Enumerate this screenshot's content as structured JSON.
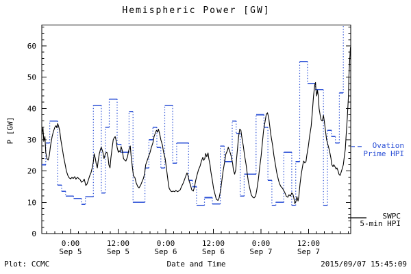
{
  "title": "Hemispheric Power [GW]",
  "footer": {
    "left": "Plot: CCMC",
    "right": "2015/09/07 15:45:09"
  },
  "colors": {
    "ovation_blue": "#2a4fd6",
    "swpc_black": "#000000",
    "background": "#ffffff"
  },
  "legend": {
    "ovation_line1": "Ovation",
    "ovation_line2": "Prime HPI",
    "swpc_line1": "SWPC",
    "swpc_line2": "5-min HPI"
  },
  "chart_data": {
    "type": "line",
    "title": "Hemispheric Power [GW]",
    "xlabel": "Date and Time",
    "ylabel": "P [GW]",
    "ylim": [
      0,
      66.8
    ],
    "y_ticks": [
      0,
      10,
      20,
      30,
      40,
      50,
      60
    ],
    "y_minor_step": 2,
    "x_hours_span": 77.87,
    "x_minor_step_hours": 2,
    "x_first_minor_hour": 1.25,
    "grid": false,
    "legend_position": "right-outside",
    "x_ticks": [
      {
        "t": 7.25,
        "time": "0:00",
        "date": "Sep 5"
      },
      {
        "t": 19.25,
        "time": "12:00",
        "date": "Sep 5"
      },
      {
        "t": 31.25,
        "time": "0:00",
        "date": "Sep 6"
      },
      {
        "t": 43.25,
        "time": "12:00",
        "date": "Sep 6"
      },
      {
        "t": 55.25,
        "time": "0:00",
        "date": "Sep 7"
      },
      {
        "t": 67.25,
        "time": "12:00",
        "date": "Sep 7"
      }
    ],
    "series": [
      {
        "name": "Ovation Prime HPI",
        "style": "hourly-steps-dotted-connectors",
        "color_key": "ovation_blue",
        "clip_top": true,
        "hourly_values": [
          22,
          29,
          36,
          36,
          15.5,
          13.5,
          12,
          12,
          11.2,
          11.2,
          9.4,
          11.8,
          11.8,
          41,
          41,
          13,
          34,
          43,
          43,
          28.5,
          26,
          26,
          39,
          10,
          10,
          10,
          21,
          30,
          34,
          27.5,
          21,
          41,
          41,
          22.5,
          29,
          29,
          29,
          17,
          15,
          9,
          9,
          11.5,
          11.5,
          9.5,
          9.5,
          28,
          23,
          23,
          36,
          32,
          12,
          19,
          19,
          19,
          38,
          38,
          34,
          17,
          9,
          10,
          10,
          26,
          26,
          9,
          23,
          55,
          55,
          48,
          48,
          46,
          46,
          9,
          33,
          31,
          29,
          45,
          67,
          67
        ]
      },
      {
        "name": "SWPC 5-min HPI",
        "style": "solid-line",
        "color_key": "swpc_black",
        "points": [
          [
            0,
            31.5
          ],
          [
            0.3,
            34
          ],
          [
            0.5,
            29.5
          ],
          [
            0.8,
            31
          ],
          [
            1.0,
            26
          ],
          [
            1.3,
            24
          ],
          [
            1.6,
            23.5
          ],
          [
            1.9,
            25
          ],
          [
            2.2,
            28
          ],
          [
            2.6,
            31
          ],
          [
            2.9,
            32.5
          ],
          [
            3.3,
            34
          ],
          [
            3.6,
            34.5
          ],
          [
            3.8,
            33.8
          ],
          [
            4.0,
            35.2
          ],
          [
            4.2,
            34.5
          ],
          [
            4.5,
            33
          ],
          [
            4.8,
            30
          ],
          [
            5.2,
            27
          ],
          [
            5.5,
            24.5
          ],
          [
            5.9,
            22
          ],
          [
            6.2,
            20
          ],
          [
            6.6,
            18.5
          ],
          [
            6.9,
            17.8
          ],
          [
            7.3,
            17.5
          ],
          [
            7.6,
            18
          ],
          [
            7.9,
            17.6
          ],
          [
            8.3,
            18.2
          ],
          [
            8.6,
            17.4
          ],
          [
            9.0,
            18
          ],
          [
            9.3,
            17.6
          ],
          [
            9.7,
            17.2
          ],
          [
            10.0,
            16.4
          ],
          [
            10.4,
            16.8
          ],
          [
            10.7,
            17.4
          ],
          [
            11.1,
            15.4
          ],
          [
            11.4,
            15.8
          ],
          [
            11.7,
            17
          ],
          [
            12.1,
            18.6
          ],
          [
            12.4,
            19.4
          ],
          [
            12.7,
            21
          ],
          [
            13.0,
            23
          ],
          [
            13.2,
            25.5
          ],
          [
            13.5,
            24
          ],
          [
            13.7,
            22.5
          ],
          [
            14.0,
            21
          ],
          [
            14.2,
            23
          ],
          [
            14.5,
            25.5
          ],
          [
            14.8,
            27
          ],
          [
            15.0,
            27.6
          ],
          [
            15.4,
            26
          ],
          [
            15.7,
            24
          ],
          [
            16.1,
            25.8
          ],
          [
            16.4,
            26
          ],
          [
            16.7,
            24.5
          ],
          [
            16.9,
            22
          ],
          [
            17.2,
            21
          ],
          [
            17.4,
            24
          ],
          [
            17.7,
            27
          ],
          [
            18.0,
            30
          ],
          [
            18.2,
            30.5
          ],
          [
            18.5,
            31
          ],
          [
            18.7,
            30
          ],
          [
            19.0,
            27.5
          ],
          [
            19.3,
            26
          ],
          [
            19.5,
            26.5
          ],
          [
            19.8,
            26
          ],
          [
            20.0,
            27.8
          ],
          [
            20.3,
            26.5
          ],
          [
            20.6,
            24
          ],
          [
            20.9,
            23.5
          ],
          [
            21.2,
            23.2
          ],
          [
            21.6,
            24.5
          ],
          [
            21.9,
            26.5
          ],
          [
            22.3,
            28
          ],
          [
            22.5,
            25
          ],
          [
            22.8,
            21.5
          ],
          [
            23.1,
            18.5
          ],
          [
            23.5,
            17.8
          ],
          [
            23.8,
            16.2
          ],
          [
            24.2,
            15
          ],
          [
            24.5,
            14.6
          ],
          [
            24.9,
            15.4
          ],
          [
            25.2,
            16.4
          ],
          [
            25.6,
            17.6
          ],
          [
            25.9,
            19
          ],
          [
            26.2,
            22
          ],
          [
            26.6,
            23.5
          ],
          [
            26.9,
            24.6
          ],
          [
            27.3,
            26
          ],
          [
            27.6,
            27.5
          ],
          [
            28.0,
            29
          ],
          [
            28.3,
            31
          ],
          [
            28.7,
            32.4
          ],
          [
            28.9,
            33
          ],
          [
            29.2,
            32.4
          ],
          [
            29.4,
            33.4
          ],
          [
            29.7,
            32
          ],
          [
            30.0,
            30
          ],
          [
            30.4,
            28.3
          ],
          [
            30.7,
            26
          ],
          [
            31.1,
            24
          ],
          [
            31.4,
            21
          ],
          [
            31.8,
            17
          ],
          [
            32.1,
            14.5
          ],
          [
            32.5,
            13.6
          ],
          [
            32.8,
            13.4
          ],
          [
            33.1,
            13.6
          ],
          [
            33.5,
            13.4
          ],
          [
            33.8,
            13.8
          ],
          [
            34.2,
            13.4
          ],
          [
            34.5,
            13.6
          ],
          [
            34.9,
            14
          ],
          [
            35.2,
            15
          ],
          [
            35.6,
            16
          ],
          [
            35.9,
            17
          ],
          [
            36.3,
            18.4
          ],
          [
            36.6,
            19.4
          ],
          [
            36.9,
            18.4
          ],
          [
            37.1,
            17
          ],
          [
            37.5,
            15.4
          ],
          [
            37.8,
            14
          ],
          [
            38.2,
            13.6
          ],
          [
            38.5,
            15
          ],
          [
            38.8,
            17
          ],
          [
            39.2,
            19
          ],
          [
            39.5,
            20.4
          ],
          [
            39.9,
            21.6
          ],
          [
            40.2,
            23
          ],
          [
            40.6,
            24.4
          ],
          [
            40.8,
            23.4
          ],
          [
            41.1,
            24
          ],
          [
            41.3,
            25.6
          ],
          [
            41.6,
            24.6
          ],
          [
            41.9,
            25.8
          ],
          [
            42.1,
            24
          ],
          [
            42.4,
            22
          ],
          [
            42.6,
            20
          ],
          [
            43.0,
            17
          ],
          [
            43.3,
            14.4
          ],
          [
            43.7,
            12.4
          ],
          [
            44.0,
            11
          ],
          [
            44.4,
            10.6
          ],
          [
            44.7,
            11.4
          ],
          [
            45.1,
            14
          ],
          [
            45.4,
            17
          ],
          [
            45.7,
            20
          ],
          [
            46.1,
            23
          ],
          [
            46.4,
            25.4
          ],
          [
            46.8,
            26.6
          ],
          [
            47.0,
            27.6
          ],
          [
            47.3,
            26.6
          ],
          [
            47.6,
            25.4
          ],
          [
            47.8,
            24.4
          ],
          [
            48.1,
            22.4
          ],
          [
            48.3,
            20.4
          ],
          [
            48.6,
            19
          ],
          [
            48.9,
            20.4
          ],
          [
            49.1,
            24
          ],
          [
            49.4,
            28
          ],
          [
            49.6,
            31
          ],
          [
            49.9,
            33.4
          ],
          [
            50.2,
            33
          ],
          [
            50.4,
            31
          ],
          [
            50.8,
            28
          ],
          [
            51.1,
            25
          ],
          [
            51.5,
            22
          ],
          [
            51.8,
            19
          ],
          [
            52.1,
            16.4
          ],
          [
            52.5,
            14
          ],
          [
            52.8,
            12.4
          ],
          [
            53.2,
            11.6
          ],
          [
            53.5,
            11.4
          ],
          [
            53.9,
            12
          ],
          [
            54.2,
            14
          ],
          [
            54.6,
            17.4
          ],
          [
            54.9,
            21
          ],
          [
            55.3,
            25
          ],
          [
            55.6,
            29
          ],
          [
            55.9,
            33
          ],
          [
            56.3,
            36
          ],
          [
            56.6,
            38.2
          ],
          [
            56.9,
            38.6
          ],
          [
            57.2,
            37
          ],
          [
            57.5,
            34
          ],
          [
            57.8,
            31
          ],
          [
            58.2,
            28
          ],
          [
            58.5,
            25
          ],
          [
            58.9,
            22
          ],
          [
            59.2,
            19.6
          ],
          [
            59.6,
            17.4
          ],
          [
            59.9,
            16
          ],
          [
            60.3,
            15
          ],
          [
            60.6,
            14.6
          ],
          [
            60.9,
            14
          ],
          [
            61.3,
            13
          ],
          [
            61.6,
            12
          ],
          [
            62.0,
            11.6
          ],
          [
            62.3,
            12.4
          ],
          [
            62.7,
            12
          ],
          [
            63.0,
            13
          ],
          [
            63.3,
            12.6
          ],
          [
            63.5,
            11.6
          ],
          [
            63.8,
            9.6
          ],
          [
            64.1,
            10.4
          ],
          [
            64.3,
            11.8
          ],
          [
            64.6,
            10.4
          ],
          [
            64.8,
            12
          ],
          [
            65.1,
            15.9
          ],
          [
            65.4,
            19
          ],
          [
            65.8,
            22
          ],
          [
            66.0,
            23.2
          ],
          [
            66.3,
            22.6
          ],
          [
            66.6,
            23
          ],
          [
            66.8,
            25
          ],
          [
            67.2,
            28
          ],
          [
            67.5,
            31
          ],
          [
            67.9,
            34.4
          ],
          [
            68.2,
            39
          ],
          [
            68.5,
            44
          ],
          [
            68.8,
            47.5
          ],
          [
            69.0,
            48.3
          ],
          [
            69.1,
            46
          ],
          [
            69.3,
            44
          ],
          [
            69.5,
            45.8
          ],
          [
            69.7,
            44
          ],
          [
            69.9,
            40
          ],
          [
            70.2,
            37.6
          ],
          [
            70.4,
            36.4
          ],
          [
            70.7,
            36
          ],
          [
            71.0,
            37.8
          ],
          [
            71.2,
            36
          ],
          [
            71.5,
            33
          ],
          [
            71.8,
            30
          ],
          [
            72.2,
            28
          ],
          [
            72.5,
            26.6
          ],
          [
            72.9,
            24
          ],
          [
            73.1,
            22
          ],
          [
            73.4,
            21.4
          ],
          [
            73.6,
            22
          ],
          [
            73.9,
            21.4
          ],
          [
            74.2,
            20.6
          ],
          [
            74.4,
            21
          ],
          [
            74.7,
            20
          ],
          [
            74.9,
            19
          ],
          [
            75.2,
            18.6
          ],
          [
            75.4,
            19.4
          ],
          [
            75.7,
            20.6
          ],
          [
            76.0,
            22
          ],
          [
            76.2,
            24
          ],
          [
            76.5,
            27
          ],
          [
            76.7,
            31
          ],
          [
            77.0,
            37
          ],
          [
            77.3,
            44
          ],
          [
            77.4,
            50
          ],
          [
            77.6,
            55
          ],
          [
            77.8,
            59.5
          ],
          [
            77.87,
            58.5
          ]
        ]
      }
    ]
  }
}
